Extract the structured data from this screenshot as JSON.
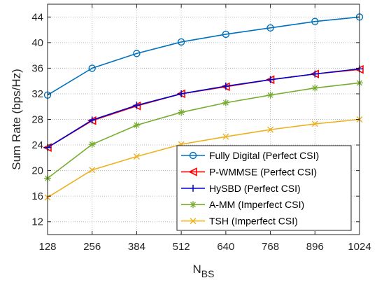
{
  "chart_data": {
    "type": "line",
    "title": "",
    "xlabel_main": "N",
    "xlabel_sub": "BS",
    "ylabel": "Sum Rate (bps/Hz)",
    "x": [
      128,
      256,
      384,
      512,
      640,
      768,
      896,
      1024
    ],
    "xlim": [
      128,
      1024
    ],
    "ylim": [
      10,
      46
    ],
    "xticks": [
      128,
      256,
      384,
      512,
      640,
      768,
      896,
      1024
    ],
    "yticks": [
      12,
      16,
      20,
      24,
      28,
      32,
      36,
      40,
      44
    ],
    "grid": true,
    "legend_position": "bottom-right",
    "series": [
      {
        "name": "Fully Digital (Perfect CSI)",
        "color": "#0072BD",
        "marker": "circle",
        "values": [
          31.8,
          36.0,
          38.3,
          40.1,
          41.3,
          42.3,
          43.3,
          44.0
        ]
      },
      {
        "name": "P-WMMSE (Perfect CSI)",
        "color": "#FF0000",
        "marker": "triangle-left",
        "values": [
          23.6,
          27.8,
          30.1,
          32.0,
          33.1,
          34.2,
          35.1,
          35.8
        ]
      },
      {
        "name": "HySBD (Perfect CSI)",
        "color": "#0000CC",
        "marker": "plus",
        "values": [
          23.6,
          27.9,
          30.2,
          32.0,
          33.2,
          34.2,
          35.1,
          35.9
        ]
      },
      {
        "name": "A-MM (Imperfect CSI)",
        "color": "#77AC30",
        "marker": "asterisk",
        "values": [
          18.8,
          24.1,
          27.1,
          29.1,
          30.6,
          31.8,
          32.9,
          33.7
        ]
      },
      {
        "name": "TSH  (Imperfect CSI)",
        "color": "#EDB120",
        "marker": "x",
        "values": [
          15.8,
          20.1,
          22.2,
          24.1,
          25.3,
          26.4,
          27.3,
          28.0
        ]
      }
    ]
  }
}
